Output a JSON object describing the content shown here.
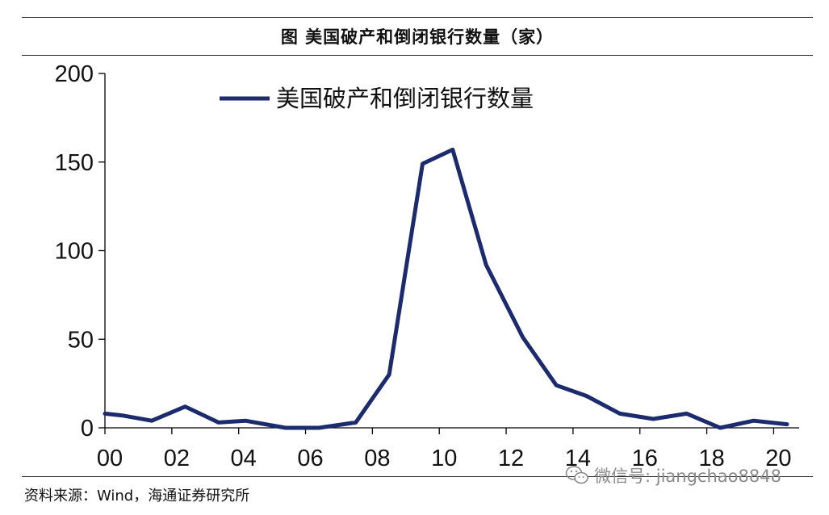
{
  "figure_title": "图  美国破产和倒闭银行数量（家）",
  "source_note": "资料来源：Wind，海通证券研究所",
  "watermark": {
    "text": "微信号: jiangchao8848",
    "icon": "wechat-icon"
  },
  "colors": {
    "line": "#1c2a6e",
    "axis": "#000000",
    "text": "#111111",
    "watermark": "#8a8a8a"
  },
  "chart_data": {
    "type": "line",
    "title": "",
    "xlabel": "",
    "ylabel": "",
    "xlim": [
      2000,
      2020.4
    ],
    "ylim": [
      0,
      200
    ],
    "y_ticks": [
      0,
      50,
      100,
      150,
      200
    ],
    "x_ticks": [
      {
        "value": 2000,
        "label": "00"
      },
      {
        "value": 2002,
        "label": "02"
      },
      {
        "value": 2004,
        "label": "04"
      },
      {
        "value": 2006,
        "label": "06"
      },
      {
        "value": 2008,
        "label": "08"
      },
      {
        "value": 2010,
        "label": "10"
      },
      {
        "value": 2012,
        "label": "12"
      },
      {
        "value": 2014,
        "label": "14"
      },
      {
        "value": 2016,
        "label": "16"
      },
      {
        "value": 2018,
        "label": "18"
      },
      {
        "value": 2020,
        "label": "20"
      }
    ],
    "legend_position": "top-left",
    "grid": false,
    "series": [
      {
        "name": "美国破产和倒闭银行数量",
        "x": [
          2000,
          2000.5,
          2001.4,
          2002.4,
          2003.4,
          2004.2,
          2005.4,
          2006.4,
          2007.5,
          2008.5,
          2009.5,
          2010.4,
          2011.4,
          2012.5,
          2013.5,
          2014.4,
          2015.4,
          2016.4,
          2017.4,
          2018.4,
          2019.4,
          2020.4
        ],
        "y": [
          8,
          7,
          4,
          12,
          3,
          4,
          0,
          0,
          3,
          30,
          149,
          157,
          92,
          51,
          24,
          18,
          8,
          5,
          8,
          0,
          4,
          2
        ]
      }
    ]
  }
}
